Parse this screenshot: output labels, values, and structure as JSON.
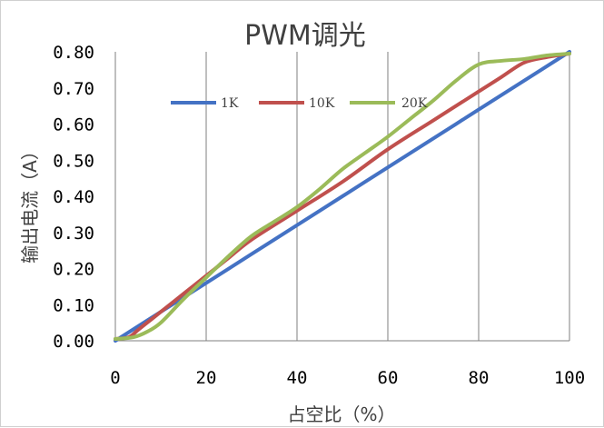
{
  "chart_data": {
    "type": "line",
    "title": "PWM调光",
    "xlabel": "占空比（%）",
    "ylabel": "输出电流（A）",
    "xlim": [
      0,
      100
    ],
    "ylim": [
      0,
      0.8
    ],
    "x_ticks": [
      "0",
      "20",
      "40",
      "60",
      "80",
      "100"
    ],
    "y_ticks": [
      "0.00",
      "0.10",
      "0.20",
      "0.30",
      "0.40",
      "0.50",
      "0.60",
      "0.70",
      "0.80"
    ],
    "grid": "vertical",
    "legend_position": "top-left",
    "series": [
      {
        "name": "1K",
        "color": "#4472C4",
        "x": [
          0,
          10,
          20,
          30,
          40,
          50,
          60,
          70,
          80,
          90,
          100
        ],
        "y": [
          0.0,
          0.08,
          0.16,
          0.24,
          0.32,
          0.4,
          0.48,
          0.56,
          0.64,
          0.72,
          0.8
        ]
      },
      {
        "name": "10K",
        "color": "#C0504D",
        "x": [
          0,
          3,
          5,
          8,
          10,
          15,
          20,
          25,
          30,
          40,
          50,
          60,
          70,
          80,
          85,
          90,
          95,
          100
        ],
        "y": [
          0.005,
          0.01,
          0.03,
          0.06,
          0.08,
          0.13,
          0.18,
          0.23,
          0.28,
          0.36,
          0.44,
          0.53,
          0.61,
          0.69,
          0.73,
          0.77,
          0.785,
          0.795
        ]
      },
      {
        "name": "20K",
        "color": "#9BBB59",
        "x": [
          0,
          4,
          7,
          10,
          15,
          20,
          25,
          30,
          35,
          40,
          45,
          50,
          55,
          60,
          65,
          70,
          75,
          80,
          85,
          90,
          95,
          100
        ],
        "y": [
          0.005,
          0.01,
          0.025,
          0.05,
          0.115,
          0.175,
          0.235,
          0.29,
          0.33,
          0.37,
          0.42,
          0.475,
          0.52,
          0.565,
          0.615,
          0.665,
          0.72,
          0.765,
          0.775,
          0.78,
          0.79,
          0.795
        ]
      }
    ]
  }
}
